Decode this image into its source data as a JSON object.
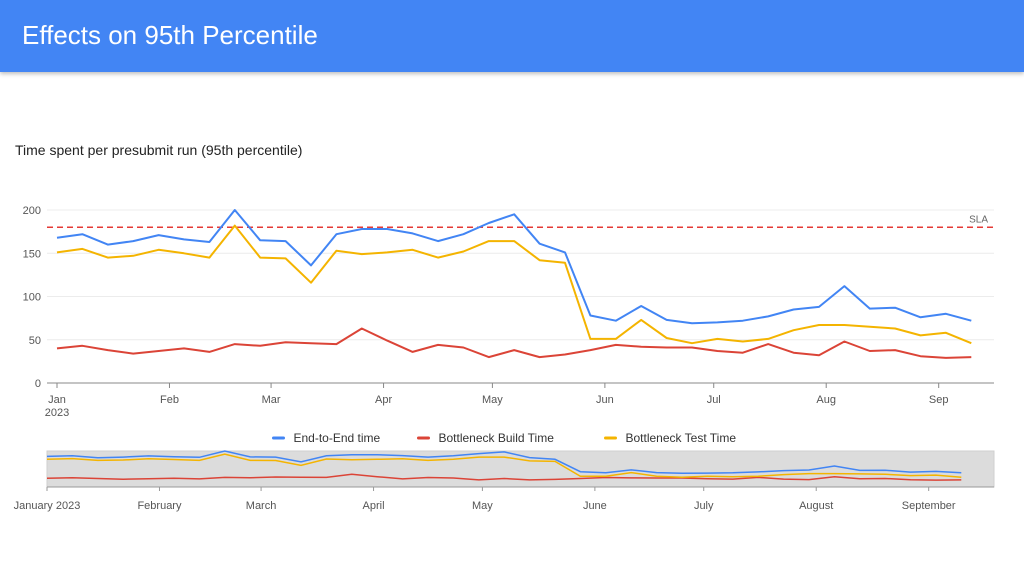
{
  "page": {
    "title": "Effects on 95th Percentile",
    "subtitle": "Time spent per presubmit run (95th percentile)"
  },
  "chart_data": {
    "type": "line",
    "title": "Time spent per presubmit run (95th percentile)",
    "x_start": "2023-01-01",
    "x_step_days": 7,
    "x_end": "2023-09-19",
    "x_ticks": [
      {
        "date": "2023-01-01",
        "label": "Jan"
      },
      {
        "date": "2023-02-01",
        "label": "Feb"
      },
      {
        "date": "2023-03-01",
        "label": "Mar"
      },
      {
        "date": "2023-04-01",
        "label": "Apr"
      },
      {
        "date": "2023-05-01",
        "label": "May"
      },
      {
        "date": "2023-06-01",
        "label": "Jun"
      },
      {
        "date": "2023-07-01",
        "label": "Jul"
      },
      {
        "date": "2023-08-01",
        "label": "Aug"
      },
      {
        "date": "2023-09-01",
        "label": "Sep"
      }
    ],
    "x_year_label": "2023",
    "ylim": [
      0,
      200
    ],
    "y_ticks": [
      0,
      50,
      100,
      150,
      200
    ],
    "grid": true,
    "sla": {
      "value": 180,
      "label": "SLA",
      "color": "#e53935"
    },
    "series": [
      {
        "name": "End-to-End time",
        "color": "#4285f4",
        "values": [
          168,
          172,
          160,
          164,
          171,
          166,
          163,
          200,
          165,
          164,
          136,
          172,
          178,
          178,
          173,
          164,
          172,
          185,
          195,
          161,
          151,
          78,
          72,
          89,
          73,
          69,
          70,
          72,
          77,
          85,
          88,
          112,
          86,
          87,
          76,
          80,
          72
        ]
      },
      {
        "name": "Bottleneck Build Time",
        "color": "#db4437",
        "values": [
          40,
          43,
          38,
          34,
          37,
          40,
          36,
          45,
          43,
          47,
          46,
          45,
          63,
          49,
          36,
          44,
          41,
          30,
          38,
          30,
          33,
          38,
          44,
          42,
          41,
          41,
          37,
          35,
          45,
          35,
          32,
          48,
          37,
          38,
          31,
          29,
          30
        ]
      },
      {
        "name": "Bottleneck Test Time",
        "color": "#f4b400",
        "values": [
          151,
          155,
          145,
          147,
          154,
          150,
          145,
          182,
          145,
          144,
          116,
          153,
          149,
          151,
          154,
          145,
          152,
          164,
          164,
          142,
          139,
          51,
          51,
          73,
          52,
          46,
          51,
          48,
          51,
          61,
          67,
          67,
          65,
          63,
          55,
          58,
          46
        ]
      }
    ],
    "legend_position": "bottom",
    "navigator": {
      "labels": [
        {
          "date": "2023-01-01",
          "label": "January 2023"
        },
        {
          "date": "2023-02-01",
          "label": "February"
        },
        {
          "date": "2023-03-01",
          "label": "March"
        },
        {
          "date": "2023-04-01",
          "label": "April"
        },
        {
          "date": "2023-05-01",
          "label": "May"
        },
        {
          "date": "2023-06-01",
          "label": "June"
        },
        {
          "date": "2023-07-01",
          "label": "July"
        },
        {
          "date": "2023-08-01",
          "label": "August"
        },
        {
          "date": "2023-09-01",
          "label": "September"
        }
      ]
    }
  }
}
